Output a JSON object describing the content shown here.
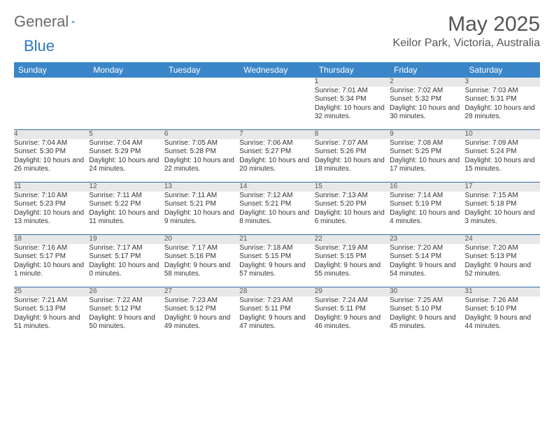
{
  "logo": {
    "text1": "General",
    "text2": "Blue"
  },
  "title": "May 2025",
  "location": "Keilor Park, Victoria, Australia",
  "colors": {
    "header_bg": "#3b86c8",
    "header_text": "#ffffff",
    "daynum_bg": "#e8e8e8",
    "row_border": "#2f6fa8",
    "logo_gray": "#6a6a6a",
    "logo_blue": "#2f78bf"
  },
  "weekday_headers": [
    "Sunday",
    "Monday",
    "Tuesday",
    "Wednesday",
    "Thursday",
    "Friday",
    "Saturday"
  ],
  "weeks": [
    [
      null,
      null,
      null,
      null,
      {
        "n": "1",
        "sr": "7:01 AM",
        "ss": "5:34 PM",
        "dl": "10 hours and 32 minutes."
      },
      {
        "n": "2",
        "sr": "7:02 AM",
        "ss": "5:32 PM",
        "dl": "10 hours and 30 minutes."
      },
      {
        "n": "3",
        "sr": "7:03 AM",
        "ss": "5:31 PM",
        "dl": "10 hours and 28 minutes."
      }
    ],
    [
      {
        "n": "4",
        "sr": "7:04 AM",
        "ss": "5:30 PM",
        "dl": "10 hours and 26 minutes."
      },
      {
        "n": "5",
        "sr": "7:04 AM",
        "ss": "5:29 PM",
        "dl": "10 hours and 24 minutes."
      },
      {
        "n": "6",
        "sr": "7:05 AM",
        "ss": "5:28 PM",
        "dl": "10 hours and 22 minutes."
      },
      {
        "n": "7",
        "sr": "7:06 AM",
        "ss": "5:27 PM",
        "dl": "10 hours and 20 minutes."
      },
      {
        "n": "8",
        "sr": "7:07 AM",
        "ss": "5:26 PM",
        "dl": "10 hours and 18 minutes."
      },
      {
        "n": "9",
        "sr": "7:08 AM",
        "ss": "5:25 PM",
        "dl": "10 hours and 17 minutes."
      },
      {
        "n": "10",
        "sr": "7:09 AM",
        "ss": "5:24 PM",
        "dl": "10 hours and 15 minutes."
      }
    ],
    [
      {
        "n": "11",
        "sr": "7:10 AM",
        "ss": "5:23 PM",
        "dl": "10 hours and 13 minutes."
      },
      {
        "n": "12",
        "sr": "7:11 AM",
        "ss": "5:22 PM",
        "dl": "10 hours and 11 minutes."
      },
      {
        "n": "13",
        "sr": "7:11 AM",
        "ss": "5:21 PM",
        "dl": "10 hours and 9 minutes."
      },
      {
        "n": "14",
        "sr": "7:12 AM",
        "ss": "5:21 PM",
        "dl": "10 hours and 8 minutes."
      },
      {
        "n": "15",
        "sr": "7:13 AM",
        "ss": "5:20 PM",
        "dl": "10 hours and 6 minutes."
      },
      {
        "n": "16",
        "sr": "7:14 AM",
        "ss": "5:19 PM",
        "dl": "10 hours and 4 minutes."
      },
      {
        "n": "17",
        "sr": "7:15 AM",
        "ss": "5:18 PM",
        "dl": "10 hours and 3 minutes."
      }
    ],
    [
      {
        "n": "18",
        "sr": "7:16 AM",
        "ss": "5:17 PM",
        "dl": "10 hours and 1 minute."
      },
      {
        "n": "19",
        "sr": "7:17 AM",
        "ss": "5:17 PM",
        "dl": "10 hours and 0 minutes."
      },
      {
        "n": "20",
        "sr": "7:17 AM",
        "ss": "5:16 PM",
        "dl": "9 hours and 58 minutes."
      },
      {
        "n": "21",
        "sr": "7:18 AM",
        "ss": "5:15 PM",
        "dl": "9 hours and 57 minutes."
      },
      {
        "n": "22",
        "sr": "7:19 AM",
        "ss": "5:15 PM",
        "dl": "9 hours and 55 minutes."
      },
      {
        "n": "23",
        "sr": "7:20 AM",
        "ss": "5:14 PM",
        "dl": "9 hours and 54 minutes."
      },
      {
        "n": "24",
        "sr": "7:20 AM",
        "ss": "5:13 PM",
        "dl": "9 hours and 52 minutes."
      }
    ],
    [
      {
        "n": "25",
        "sr": "7:21 AM",
        "ss": "5:13 PM",
        "dl": "9 hours and 51 minutes."
      },
      {
        "n": "26",
        "sr": "7:22 AM",
        "ss": "5:12 PM",
        "dl": "9 hours and 50 minutes."
      },
      {
        "n": "27",
        "sr": "7:23 AM",
        "ss": "5:12 PM",
        "dl": "9 hours and 49 minutes."
      },
      {
        "n": "28",
        "sr": "7:23 AM",
        "ss": "5:11 PM",
        "dl": "9 hours and 47 minutes."
      },
      {
        "n": "29",
        "sr": "7:24 AM",
        "ss": "5:11 PM",
        "dl": "9 hours and 46 minutes."
      },
      {
        "n": "30",
        "sr": "7:25 AM",
        "ss": "5:10 PM",
        "dl": "9 hours and 45 minutes."
      },
      {
        "n": "31",
        "sr": "7:26 AM",
        "ss": "5:10 PM",
        "dl": "9 hours and 44 minutes."
      }
    ]
  ],
  "labels": {
    "sunrise": "Sunrise:",
    "sunset": "Sunset:",
    "daylight": "Daylight:"
  }
}
